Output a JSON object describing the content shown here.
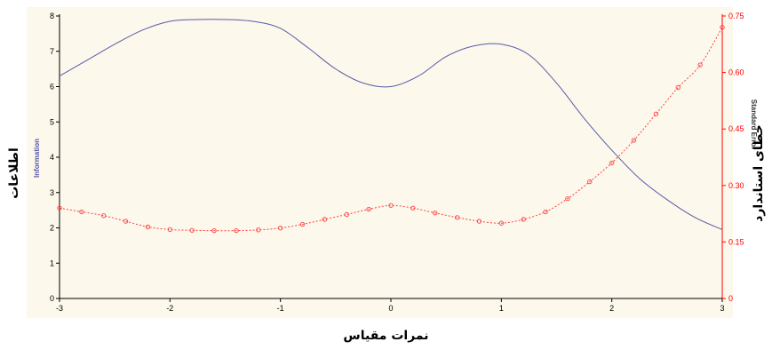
{
  "chart_data": {
    "type": "line",
    "xlabel": "نمرات مقياس",
    "ylabel_left_outer": "اطلاعات",
    "ylabel_left_inner": "Information",
    "ylabel_right_outer": "خطای استاندارد",
    "ylabel_right_inner": "Standard Error",
    "xlim": [
      -3,
      3
    ],
    "ylim_left": [
      0,
      8
    ],
    "ylim_right": [
      0,
      0.75
    ],
    "x_ticks": [
      "-3",
      "-2",
      "-1",
      "0",
      "1",
      "2",
      "3"
    ],
    "y_left_ticks": [
      "0",
      "1",
      "2",
      "3",
      "4",
      "5",
      "6",
      "7",
      "8"
    ],
    "y_right_ticks": [
      "0",
      "0.15",
      "0.30",
      "0.45",
      "0.60",
      "0.75"
    ],
    "grid": false,
    "series": [
      {
        "name": "Information",
        "axis": "left",
        "color": "#5a5aa8",
        "style": "solid",
        "x": [
          -3,
          -2.75,
          -2.5,
          -2.25,
          -2,
          -1.75,
          -1.5,
          -1.25,
          -1,
          -0.75,
          -0.5,
          -0.25,
          0,
          0.25,
          0.5,
          0.75,
          1,
          1.25,
          1.5,
          1.75,
          2,
          2.25,
          2.5,
          2.75,
          3
        ],
        "values": [
          6.3,
          6.75,
          7.2,
          7.6,
          7.85,
          7.9,
          7.9,
          7.85,
          7.65,
          7.1,
          6.5,
          6.1,
          6.0,
          6.3,
          6.85,
          7.15,
          7.2,
          6.9,
          6.1,
          5.1,
          4.2,
          3.4,
          2.8,
          2.3,
          1.95
        ]
      },
      {
        "name": "Standard Error",
        "axis": "right",
        "color": "#ff4040",
        "style": "dotted",
        "x": [
          -3,
          -2.8,
          -2.6,
          -2.4,
          -2.2,
          -2,
          -1.8,
          -1.6,
          -1.4,
          -1.2,
          -1,
          -0.8,
          -0.6,
          -0.4,
          -0.2,
          0,
          0.2,
          0.4,
          0.6,
          0.8,
          1,
          1.2,
          1.4,
          1.6,
          1.8,
          2,
          2.2,
          2.4,
          2.6,
          2.8,
          3
        ],
        "values": [
          0.24,
          0.23,
          0.22,
          0.205,
          0.19,
          0.183,
          0.181,
          0.18,
          0.18,
          0.182,
          0.187,
          0.197,
          0.21,
          0.223,
          0.237,
          0.247,
          0.24,
          0.227,
          0.215,
          0.205,
          0.2,
          0.21,
          0.23,
          0.265,
          0.31,
          0.36,
          0.42,
          0.49,
          0.56,
          0.62,
          0.72
        ]
      }
    ]
  },
  "colors": {
    "plot_background": "#fcf8ec",
    "left_axis": "#000000",
    "right_axis": "#ff0000"
  }
}
